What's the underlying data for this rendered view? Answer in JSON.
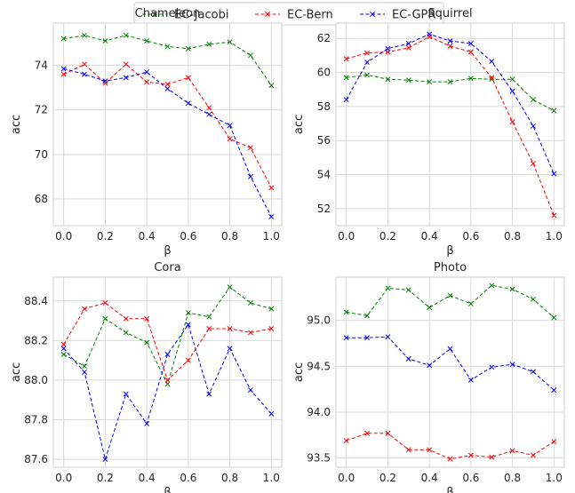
{
  "legend": {
    "placement": "top-center",
    "entries": [
      {
        "name": "EC-Jacobi",
        "color": "#008000"
      },
      {
        "name": "EC-Bern",
        "color": "#ff0000"
      },
      {
        "name": "EC-GPR",
        "color": "#0000ff"
      }
    ]
  },
  "chart_data": [
    {
      "type": "line",
      "title": "Chameleon",
      "xlabel": "β",
      "ylabel": "acc",
      "x": [
        0.0,
        0.1,
        0.2,
        0.3,
        0.4,
        0.5,
        0.6,
        0.7,
        0.8,
        0.9,
        1.0
      ],
      "xlim": [
        -0.05,
        1.05
      ],
      "ylim": [
        66.8,
        75.9
      ],
      "xticks": [
        "0.0",
        "0.2",
        "0.4",
        "0.6",
        "0.8",
        "1.0"
      ],
      "yticks": [
        "68",
        "70",
        "72",
        "74"
      ],
      "grid": true,
      "series": [
        {
          "name": "EC-Jacobi",
          "values": [
            75.2,
            75.35,
            75.1,
            75.35,
            75.1,
            74.85,
            74.75,
            74.95,
            75.05,
            74.45,
            73.1
          ]
        },
        {
          "name": "EC-Bern",
          "values": [
            73.6,
            74.05,
            73.2,
            74.05,
            73.25,
            73.15,
            73.45,
            72.1,
            70.7,
            70.3,
            68.5
          ]
        },
        {
          "name": "EC-GPR",
          "values": [
            73.85,
            73.6,
            73.3,
            73.45,
            73.7,
            72.95,
            72.3,
            71.8,
            71.3,
            69.0,
            67.2
          ]
        }
      ]
    },
    {
      "type": "line",
      "title": "Squirrel",
      "xlabel": "β",
      "ylabel": "acc",
      "x": [
        0.0,
        0.1,
        0.2,
        0.3,
        0.4,
        0.5,
        0.6,
        0.7,
        0.8,
        0.9,
        1.0
      ],
      "xlim": [
        -0.05,
        1.05
      ],
      "ylim": [
        51.0,
        62.9
      ],
      "xticks": [
        "0.0",
        "0.2",
        "0.4",
        "0.6",
        "0.8",
        "1.0"
      ],
      "yticks": [
        "52",
        "54",
        "56",
        "58",
        "60",
        "62"
      ],
      "grid": true,
      "series": [
        {
          "name": "EC-Jacobi",
          "values": [
            59.7,
            59.85,
            59.6,
            59.55,
            59.45,
            59.45,
            59.65,
            59.6,
            59.6,
            58.4,
            57.75
          ]
        },
        {
          "name": "EC-Bern",
          "values": [
            60.8,
            61.15,
            61.2,
            61.45,
            62.1,
            61.55,
            61.2,
            59.7,
            57.1,
            54.65,
            51.6
          ]
        },
        {
          "name": "EC-GPR",
          "values": [
            58.4,
            60.6,
            61.4,
            61.7,
            62.25,
            61.85,
            61.7,
            60.65,
            58.9,
            56.85,
            54.05
          ]
        }
      ]
    },
    {
      "type": "line",
      "title": "Cora",
      "xlabel": "β",
      "ylabel": "acc",
      "x": [
        0.0,
        0.1,
        0.2,
        0.3,
        0.4,
        0.5,
        0.6,
        0.7,
        0.8,
        0.9,
        1.0
      ],
      "xlim": [
        -0.05,
        1.05
      ],
      "ylim": [
        87.56,
        88.52
      ],
      "xticks": [
        "0.0",
        "0.2",
        "0.4",
        "0.6",
        "0.8",
        "1.0"
      ],
      "yticks": [
        "87.6",
        "87.8",
        "88.0",
        "88.2",
        "88.4"
      ],
      "grid": true,
      "series": [
        {
          "name": "EC-Jacobi",
          "values": [
            88.13,
            88.07,
            88.31,
            88.24,
            88.19,
            87.98,
            88.34,
            88.32,
            88.47,
            88.39,
            88.36
          ]
        },
        {
          "name": "EC-Bern",
          "values": [
            88.18,
            88.36,
            88.39,
            88.31,
            88.31,
            88.0,
            88.1,
            88.26,
            88.26,
            88.24,
            88.26
          ]
        },
        {
          "name": "EC-GPR",
          "values": [
            88.16,
            88.04,
            87.6,
            87.93,
            87.78,
            88.13,
            88.28,
            87.93,
            88.16,
            87.95,
            87.83
          ]
        }
      ]
    },
    {
      "type": "line",
      "title": "Photo",
      "xlabel": "β",
      "ylabel": "acc",
      "x": [
        0.0,
        0.1,
        0.2,
        0.3,
        0.4,
        0.5,
        0.6,
        0.7,
        0.8,
        0.9,
        1.0
      ],
      "xlim": [
        -0.05,
        1.05
      ],
      "ylim": [
        93.4,
        95.47
      ],
      "xticks": [
        "0.0",
        "0.2",
        "0.4",
        "0.6",
        "0.8",
        "1.0"
      ],
      "yticks": [
        "93.5",
        "94.0",
        "94.5",
        "95.0"
      ],
      "grid": true,
      "series": [
        {
          "name": "EC-Jacobi",
          "values": [
            95.09,
            95.05,
            95.35,
            95.33,
            95.14,
            95.27,
            95.18,
            95.38,
            95.34,
            95.23,
            95.03
          ]
        },
        {
          "name": "EC-Bern",
          "values": [
            93.69,
            93.77,
            93.77,
            93.59,
            93.59,
            93.49,
            93.53,
            93.51,
            93.58,
            93.53,
            93.68
          ]
        },
        {
          "name": "EC-GPR",
          "values": [
            94.81,
            94.81,
            94.82,
            94.58,
            94.51,
            94.69,
            94.35,
            94.49,
            94.52,
            94.44,
            94.24
          ]
        }
      ]
    }
  ]
}
